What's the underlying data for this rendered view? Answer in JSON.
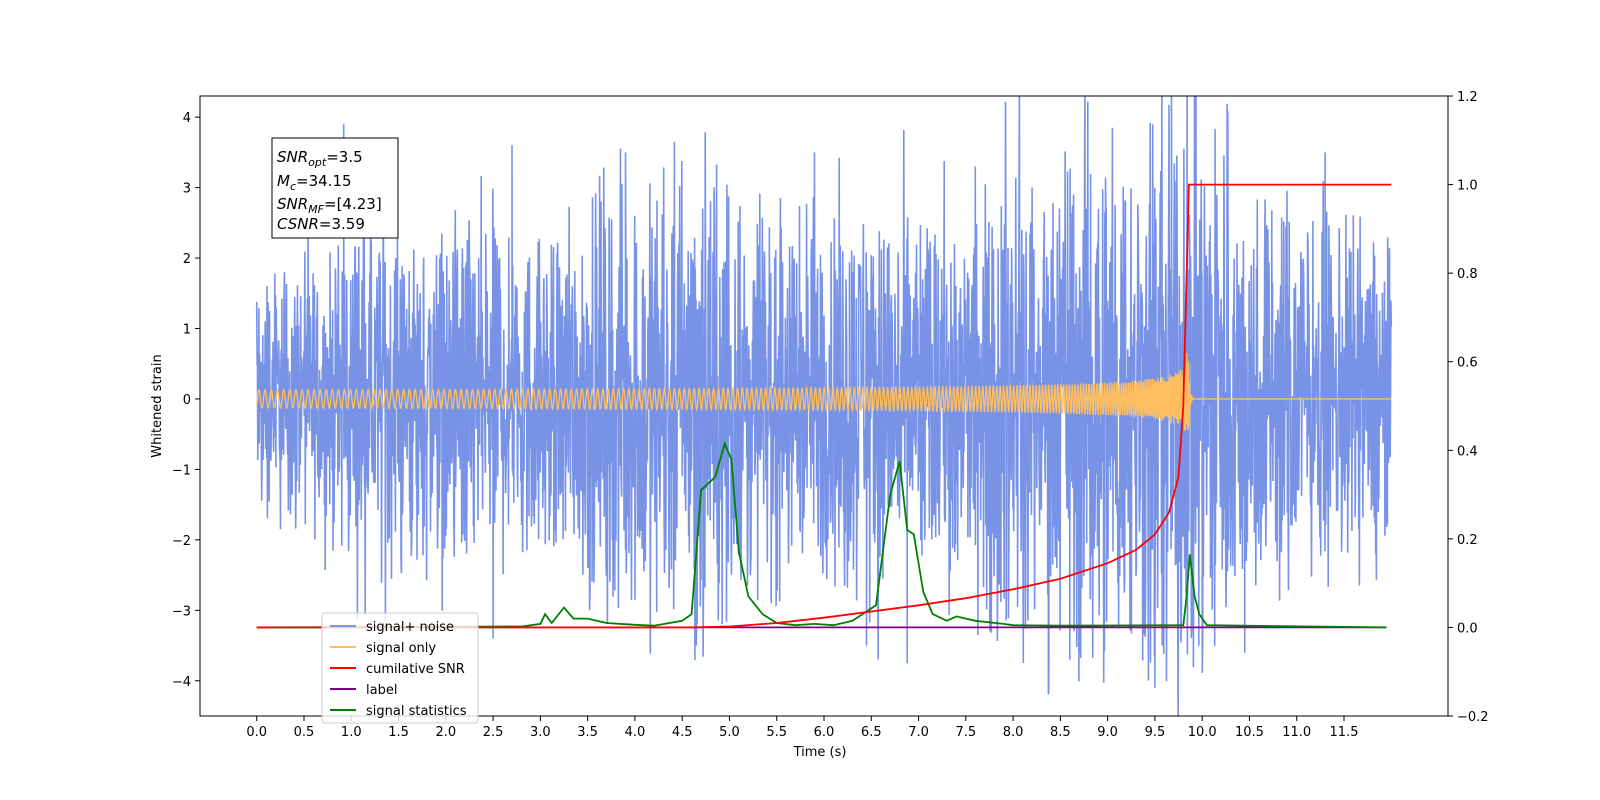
{
  "chart_data": {
    "type": "line",
    "xlabel": "Time (s)",
    "ylabel_left": "Whitened strain",
    "ylabel_right": "",
    "xlim": [
      -0.6,
      12.6
    ],
    "ylim_left": [
      -4.5,
      4.3
    ],
    "ylim_right": [
      -0.2,
      1.2
    ],
    "x_ticks": [
      "0.0",
      "0.5",
      "1.0",
      "1.5",
      "2.0",
      "2.5",
      "3.0",
      "3.5",
      "4.0",
      "4.5",
      "5.0",
      "5.5",
      "6.0",
      "6.5",
      "7.0",
      "7.5",
      "8.0",
      "8.5",
      "9.0",
      "9.5",
      "10.0",
      "10.5",
      "11.0",
      "11.5"
    ],
    "y_ticks_left": [
      "4",
      "3",
      "2",
      "1",
      "0",
      "−1",
      "−2",
      "−3",
      "−4"
    ],
    "y_ticks_right": [
      "1.2",
      "1.0",
      "0.8",
      "0.6",
      "0.4",
      "0.2",
      "0.0",
      "−0.2"
    ],
    "grid": false,
    "legend_position": "lower-left",
    "annotation": {
      "line1_label": "SNR",
      "line1_sub": "opt",
      "line1_value": "=3.5",
      "line2_label": "M",
      "line2_sub": "c",
      "line2_value": "=34.15",
      "line3_label": "SNR",
      "line3_sub": "MF",
      "line3_value": "=[4.23]",
      "line4_label": "CSNR",
      "line4_value": "=3.59"
    },
    "series": [
      {
        "name": "signal+ noise",
        "axis": "left",
        "color": "#7893e6",
        "description_points": {
          "x_range": [
            0.0,
            12.0
          ],
          "typical_max": [
            1.5,
            2.4,
            2.2,
            1.9,
            2.5,
            2.6,
            2.2,
            2.4,
            2.2,
            2.8,
            3.3,
            3.7,
            2.9,
            2.2
          ],
          "typical_min": [
            -1.8,
            -2.0,
            -2.3,
            -2.1,
            -2.7,
            -3.2,
            -2.4,
            -2.5,
            -2.3,
            -3.4,
            -3.3,
            -4.1,
            -2.2,
            -2.0
          ],
          "peaks_x": [
            0.92,
            2.7,
            3.9,
            5.9,
            7.6,
            9.05,
            11.3
          ],
          "peaks_y": [
            3.9,
            3.6,
            3.5,
            3.5,
            3.3,
            3.85,
            3.5
          ],
          "troughs_x": [
            2.5,
            4.65,
            6.45,
            6.88,
            8.6,
            9.5,
            10.45
          ],
          "troughs_y": [
            -3.4,
            -3.5,
            -3.5,
            -3.75,
            -3.7,
            -4.1,
            -3.6
          ]
        }
      },
      {
        "name": "signal only",
        "axis": "left",
        "color": "#ffbf60",
        "chirp_end": 9.85,
        "chirp_peak_amplitude": 0.9
      },
      {
        "name": "cumilative SNR",
        "axis": "right",
        "color": "#ff0000",
        "x": [
          0.0,
          4.6,
          5.0,
          5.5,
          6.0,
          6.5,
          7.0,
          7.5,
          8.0,
          8.5,
          9.0,
          9.3,
          9.5,
          9.65,
          9.75,
          9.8,
          9.83,
          9.86,
          12.0
        ],
        "values": [
          0.0,
          0.0,
          0.002,
          0.01,
          0.022,
          0.036,
          0.05,
          0.066,
          0.086,
          0.11,
          0.145,
          0.175,
          0.21,
          0.26,
          0.34,
          0.5,
          0.75,
          1.0,
          1.0
        ]
      },
      {
        "name": "label",
        "axis": "right",
        "color": "#800080",
        "x": [
          0.0,
          11.95
        ],
        "values": [
          0.0,
          0.0
        ]
      },
      {
        "name": "signal statistics",
        "axis": "right",
        "color": "#008000",
        "x": [
          0.0,
          2.8,
          3.0,
          3.05,
          3.12,
          3.25,
          3.35,
          3.5,
          3.7,
          4.0,
          4.2,
          4.5,
          4.6,
          4.7,
          4.85,
          4.95,
          5.02,
          5.1,
          5.2,
          5.35,
          5.5,
          5.7,
          5.9,
          6.1,
          6.3,
          6.55,
          6.7,
          6.8,
          6.88,
          6.95,
          7.05,
          7.15,
          7.3,
          7.4,
          7.6,
          7.9,
          8.0,
          8.5,
          9.8,
          9.83,
          9.87,
          9.92,
          9.97,
          10.05,
          11.95
        ],
        "values": [
          0.0,
          0.002,
          0.008,
          0.03,
          0.01,
          0.045,
          0.02,
          0.02,
          0.01,
          0.006,
          0.004,
          0.015,
          0.03,
          0.31,
          0.34,
          0.415,
          0.38,
          0.17,
          0.07,
          0.03,
          0.01,
          0.005,
          0.008,
          0.005,
          0.015,
          0.05,
          0.3,
          0.375,
          0.22,
          0.21,
          0.08,
          0.03,
          0.015,
          0.025,
          0.015,
          0.008,
          0.005,
          0.004,
          0.005,
          0.06,
          0.165,
          0.07,
          0.03,
          0.005,
          0.0
        ]
      }
    ]
  }
}
